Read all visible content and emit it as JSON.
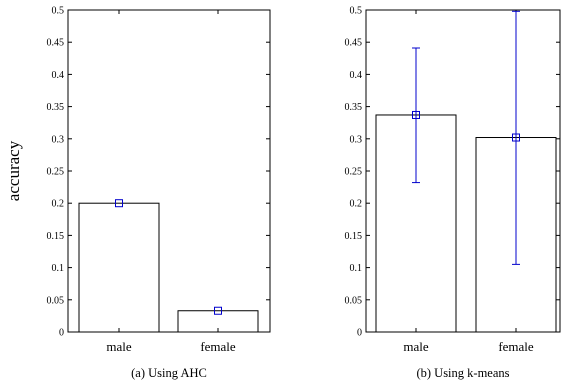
{
  "ylabel": "accuracy",
  "chart_data": [
    {
      "type": "bar",
      "caption": "(a) Using AHC",
      "categories": [
        "male",
        "female"
      ],
      "values": [
        0.2,
        0.033
      ],
      "error_low": [
        0.2,
        0.033
      ],
      "error_high": [
        0.2,
        0.033
      ],
      "ylabel": "accuracy",
      "ylim": [
        0,
        0.5
      ],
      "yticks": [
        0,
        0.05,
        0.1,
        0.15,
        0.2,
        0.25,
        0.3,
        0.35,
        0.4,
        0.45,
        0.5
      ],
      "ytick_labels": [
        "0",
        "0.05",
        "0.1",
        "0.15",
        "0.2",
        "0.25",
        "0.3",
        "0.35",
        "0.4",
        "0.45",
        "0.5"
      ],
      "grid": false,
      "bar_fill": "#ffffff",
      "bar_edge": "#000000",
      "marker_color": "#0000cc",
      "marker": "square"
    },
    {
      "type": "bar",
      "caption": "(b) Using k-means",
      "categories": [
        "male",
        "female"
      ],
      "values": [
        0.337,
        0.302
      ],
      "error_low": [
        0.232,
        0.105
      ],
      "error_high": [
        0.441,
        0.498
      ],
      "ylim": [
        0,
        0.5
      ],
      "yticks": [
        0,
        0.05,
        0.1,
        0.15,
        0.2,
        0.25,
        0.3,
        0.35,
        0.4,
        0.45,
        0.5
      ],
      "ytick_labels": [
        "0",
        "0.05",
        "0.1",
        "0.15",
        "0.2",
        "0.25",
        "0.3",
        "0.35",
        "0.4",
        "0.45",
        "0.5"
      ],
      "grid": false,
      "bar_fill": "#ffffff",
      "bar_edge": "#000000",
      "marker_color": "#0000cc",
      "marker": "square"
    }
  ]
}
